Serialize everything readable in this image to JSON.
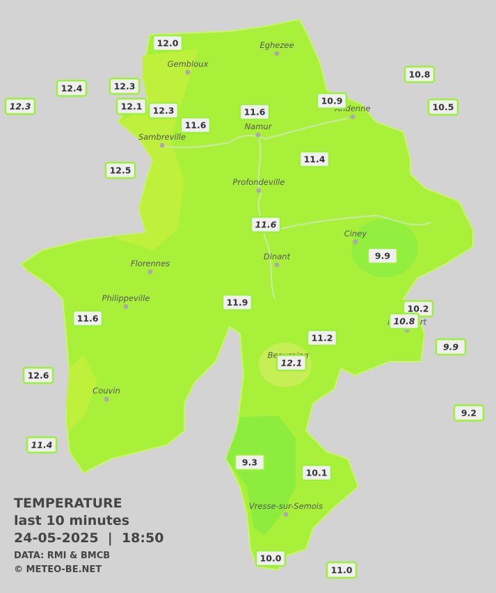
{
  "legend": {
    "title": "TEMPERATURE",
    "period": "last 10 minutes",
    "datetime": "24-05-2025  |  18:50",
    "source": "DATA: RMI & BMCB",
    "copyright": "© METEO-BE.NET"
  },
  "cities": [
    "Eghezee",
    "Gembloux",
    "Andenne",
    "Namur",
    "Sambreville",
    "Profondeville",
    "Ciney",
    "Dinant",
    "Florennes",
    "Philippeville",
    "Rochefort",
    "Beauraing",
    "Couvin",
    "Vresse-sur-Semois"
  ],
  "stations": [
    {
      "value": "12.0",
      "italic": false
    },
    {
      "value": "12.4",
      "italic": false
    },
    {
      "value": "12.3",
      "italic": false
    },
    {
      "value": "12.3",
      "italic": true
    },
    {
      "value": "12.1",
      "italic": false
    },
    {
      "value": "12.3",
      "italic": false
    },
    {
      "value": "11.6",
      "italic": false
    },
    {
      "value": "11.6",
      "italic": false
    },
    {
      "value": "10.9",
      "italic": false
    },
    {
      "value": "10.8",
      "italic": false
    },
    {
      "value": "10.5",
      "italic": false
    },
    {
      "value": "11.4",
      "italic": false
    },
    {
      "value": "12.5",
      "italic": false
    },
    {
      "value": "11.6",
      "italic": true
    },
    {
      "value": "9.9",
      "italic": false
    },
    {
      "value": "11.9",
      "italic": false
    },
    {
      "value": "11.6",
      "italic": false
    },
    {
      "value": "10.2",
      "italic": false
    },
    {
      "value": "10.8",
      "italic": true
    },
    {
      "value": "11.2",
      "italic": false
    },
    {
      "value": "12.1",
      "italic": true
    },
    {
      "value": "9.9",
      "italic": true
    },
    {
      "value": "12.6",
      "italic": false
    },
    {
      "value": "9.2",
      "italic": false
    },
    {
      "value": "11.4",
      "italic": true
    },
    {
      "value": "9.3",
      "italic": false
    },
    {
      "value": "10.1",
      "italic": false
    },
    {
      "value": "10.0",
      "italic": false
    },
    {
      "value": "11.0",
      "italic": false
    }
  ]
}
